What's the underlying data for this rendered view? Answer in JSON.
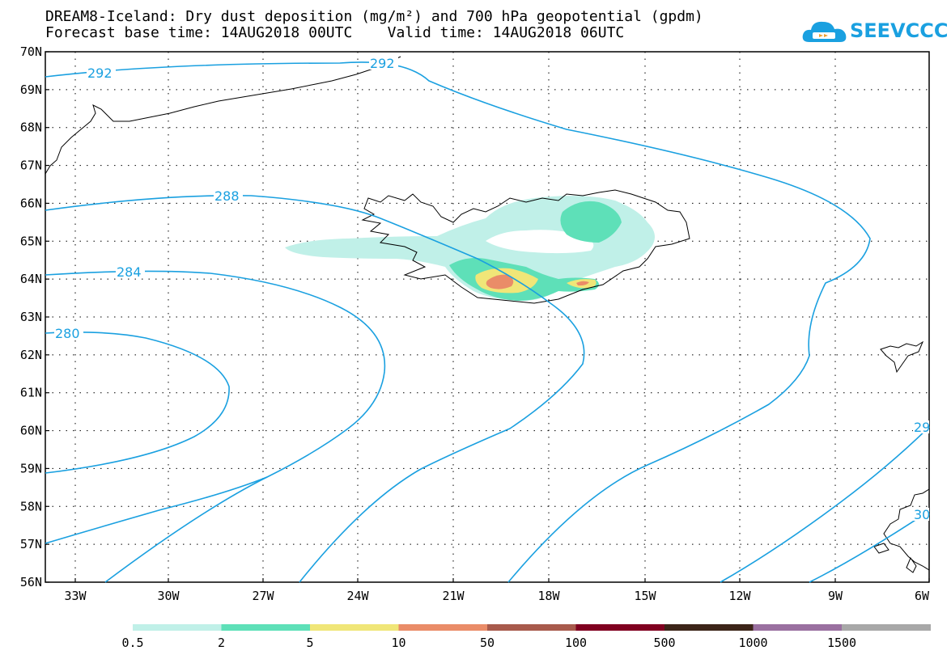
{
  "title": {
    "line1": "DREAM8-Iceland: Dry dust deposition (mg/m²) and 700 hPa geopotential (gpdm)",
    "line2": "Forecast base time: 14AUG2018 00UTC    Valid time: 14AUG2018 06UTC"
  },
  "logo": {
    "text": "SEEVCCC",
    "icon": "cloud-icon"
  },
  "map": {
    "lat_labels": [
      "70N",
      "69N",
      "68N",
      "67N",
      "66N",
      "65N",
      "64N",
      "63N",
      "62N",
      "61N",
      "60N",
      "59N",
      "58N",
      "57N",
      "56N"
    ],
    "lon_labels": [
      "33W",
      "30W",
      "27W",
      "24W",
      "21W",
      "18W",
      "15W",
      "12W",
      "9W",
      "6W"
    ],
    "contour_color": "#1aa0e0",
    "contour_labels": [
      "292",
      "292",
      "288",
      "284",
      "280",
      "29",
      "30"
    ]
  },
  "legend": {
    "colors": [
      "#c0f0e8",
      "#5ee0b8",
      "#f0e678",
      "#ea8c68",
      "#a85a4c",
      "#800020",
      "#3c2418",
      "#9a70a0",
      "#a8a8a8"
    ],
    "labels": [
      "0.5",
      "2",
      "5",
      "10",
      "50",
      "100",
      "500",
      "1000",
      "1500"
    ]
  }
}
